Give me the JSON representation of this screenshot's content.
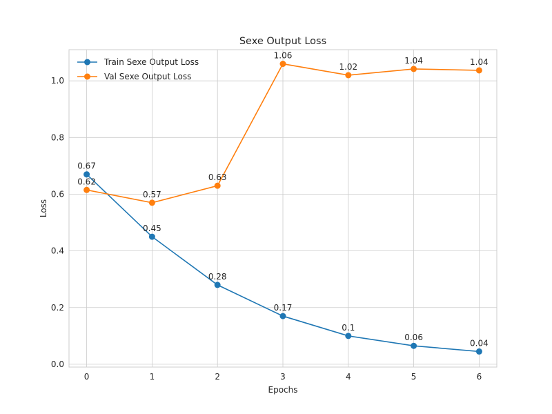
{
  "chart_data": {
    "type": "line",
    "title": "Sexe Output Loss",
    "xlabel": "Epochs",
    "ylabel": "Loss",
    "x": [
      0,
      1,
      2,
      3,
      4,
      5,
      6
    ],
    "xlim": [
      -0.27,
      6.27
    ],
    "ylim": [
      -0.01,
      1.11
    ],
    "xticks": [
      "0",
      "1",
      "2",
      "3",
      "4",
      "5",
      "6"
    ],
    "yticks": [
      "0.0",
      "0.2",
      "0.4",
      "0.6",
      "0.8",
      "1.0"
    ],
    "grid": true,
    "legend_position": "top-left",
    "series": [
      {
        "name": "Train Sexe Output Loss",
        "color": "#1f77b4",
        "values": [
          0.67,
          0.45,
          0.28,
          0.17,
          0.1,
          0.065,
          0.045
        ],
        "labels": [
          "0.67",
          "0.45",
          "0.28",
          "0.17",
          "0.1",
          "0.06",
          "0.04"
        ]
      },
      {
        "name": "Val Sexe Output Loss",
        "color": "#ff7f0e",
        "values": [
          0.615,
          0.57,
          0.63,
          1.06,
          1.02,
          1.042,
          1.037
        ],
        "labels": [
          "0.62",
          "0.57",
          "0.63",
          "1.06",
          "1.02",
          "1.04",
          "1.04"
        ]
      }
    ]
  }
}
